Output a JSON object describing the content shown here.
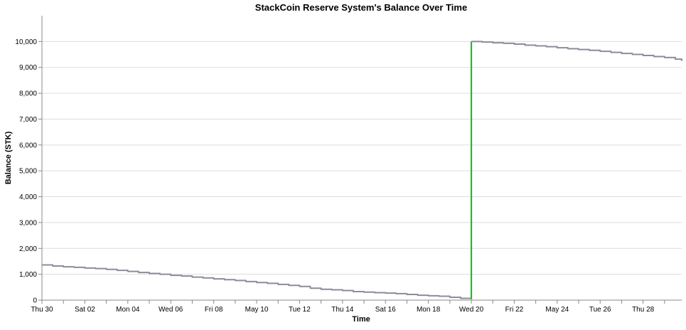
{
  "chart_data": {
    "type": "line",
    "title": "StackCoin Reserve System's Balance Over Time",
    "xlabel": "Time",
    "ylabel": "Balance (STK)",
    "x_tick_labels": [
      "Thu 30",
      "Sat 02",
      "Mon 04",
      "Wed 06",
      "Fri 08",
      "May 10",
      "Tue 12",
      "Thu 14",
      "Sat 16",
      "Mon 18",
      "Wed 20",
      "Fri 22",
      "May 24",
      "Tue 26",
      "Thu 28"
    ],
    "x_tick_days": [
      0,
      2,
      4,
      6,
      8,
      10,
      12,
      14,
      16,
      18,
      20,
      22,
      24,
      26,
      28
    ],
    "xlim_days": [
      0,
      29.8
    ],
    "y_ticks": [
      0,
      1000,
      2000,
      3000,
      4000,
      5000,
      6000,
      7000,
      8000,
      9000,
      10000
    ],
    "ylim": [
      0,
      11000
    ],
    "grid": true,
    "colors": {
      "balance_line": "#8c8c9a",
      "deposit_line": "#3aaa3a",
      "axis": "#888888",
      "grid": "#dddddd"
    },
    "series": [
      {
        "role": "balance",
        "x_days": [
          0,
          0.5,
          1,
          1.5,
          2,
          2.5,
          3,
          3.5,
          4,
          4.5,
          5,
          5.5,
          6,
          6.5,
          7,
          7.5,
          8,
          8.5,
          9,
          9.5,
          10,
          10.5,
          11,
          11.5,
          12,
          12.5,
          13,
          13.5,
          14,
          14.5,
          15,
          15.5,
          16,
          16.5,
          17,
          17.5,
          18,
          18.5,
          19,
          19.5,
          20
        ],
        "values": [
          1360,
          1320,
          1290,
          1270,
          1240,
          1220,
          1190,
          1150,
          1110,
          1070,
          1030,
          1000,
          960,
          930,
          890,
          860,
          820,
          790,
          760,
          720,
          680,
          650,
          610,
          570,
          530,
          460,
          420,
          400,
          370,
          330,
          310,
          290,
          270,
          250,
          220,
          190,
          170,
          150,
          110,
          70,
          30
        ]
      },
      {
        "role": "deposit",
        "x_days": [
          20,
          20
        ],
        "values": [
          30,
          10000
        ]
      },
      {
        "role": "balance",
        "x_days": [
          20,
          20.5,
          21,
          21.5,
          22,
          22.5,
          23,
          23.5,
          24,
          24.5,
          25,
          25.5,
          26,
          26.5,
          27,
          27.5,
          28,
          28.5,
          29,
          29.5,
          29.8
        ],
        "values": [
          10000,
          9980,
          9950,
          9930,
          9900,
          9860,
          9830,
          9800,
          9760,
          9720,
          9690,
          9660,
          9620,
          9580,
          9540,
          9500,
          9460,
          9420,
          9380,
          9320,
          9250
        ]
      }
    ]
  }
}
